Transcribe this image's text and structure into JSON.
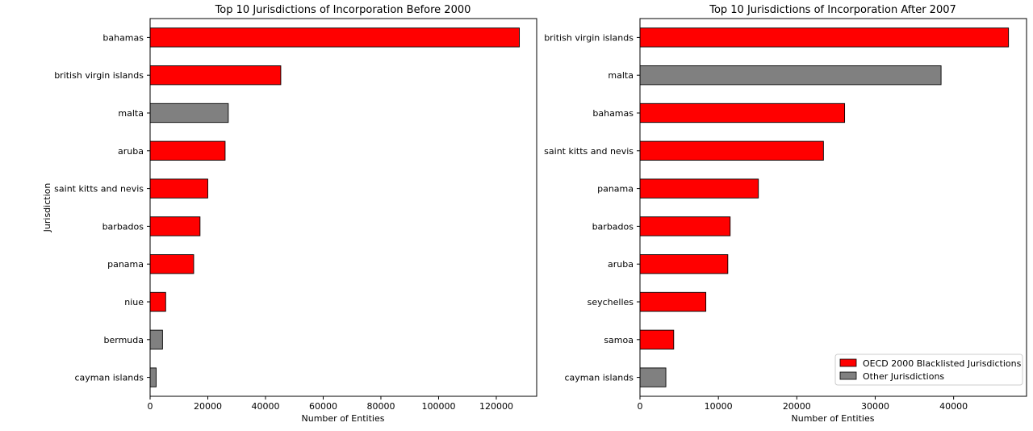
{
  "colors": {
    "blacklisted": "#ff0000",
    "other": "#808080",
    "edge": "#000000"
  },
  "legend": {
    "blacklisted_label": "OECD 2000 Blacklisted Jurisdictions",
    "other_label": "Other Jurisdictions",
    "placement": "lower right"
  },
  "chart_data": [
    {
      "type": "bar",
      "orientation": "horizontal",
      "title": "Top 10 Jurisdictions of Incorporation Before 2000",
      "xlabel": "Number of Entities",
      "ylabel": "Jurisdiction",
      "xlim": [
        0,
        134000
      ],
      "xticks": [
        0,
        20000,
        40000,
        60000,
        80000,
        100000,
        120000
      ],
      "grid": false,
      "categories": [
        "bahamas",
        "british virgin islands",
        "malta",
        "aruba",
        "saint kitts and nevis",
        "barbados",
        "panama",
        "niue",
        "bermuda",
        "cayman islands"
      ],
      "values": [
        128000,
        45300,
        27100,
        26000,
        20000,
        17300,
        15100,
        5400,
        4300,
        2100
      ],
      "groups": [
        "blacklisted",
        "blacklisted",
        "other",
        "blacklisted",
        "blacklisted",
        "blacklisted",
        "blacklisted",
        "blacklisted",
        "other",
        "other"
      ]
    },
    {
      "type": "bar",
      "orientation": "horizontal",
      "title": "Top 10 Jurisdictions of Incorporation After 2007",
      "xlabel": "Number of Entities",
      "ylabel": "",
      "xlim": [
        0,
        49300
      ],
      "xticks": [
        0,
        10000,
        20000,
        30000,
        40000
      ],
      "grid": false,
      "categories": [
        "british virgin islands",
        "malta",
        "bahamas",
        "saint kitts and nevis",
        "panama",
        "barbados",
        "aruba",
        "seychelles",
        "samoa",
        "cayman islands"
      ],
      "values": [
        47000,
        38400,
        26100,
        23400,
        15100,
        11500,
        11200,
        8400,
        4300,
        3300
      ],
      "groups": [
        "blacklisted",
        "other",
        "blacklisted",
        "blacklisted",
        "blacklisted",
        "blacklisted",
        "blacklisted",
        "blacklisted",
        "blacklisted",
        "other"
      ]
    }
  ]
}
